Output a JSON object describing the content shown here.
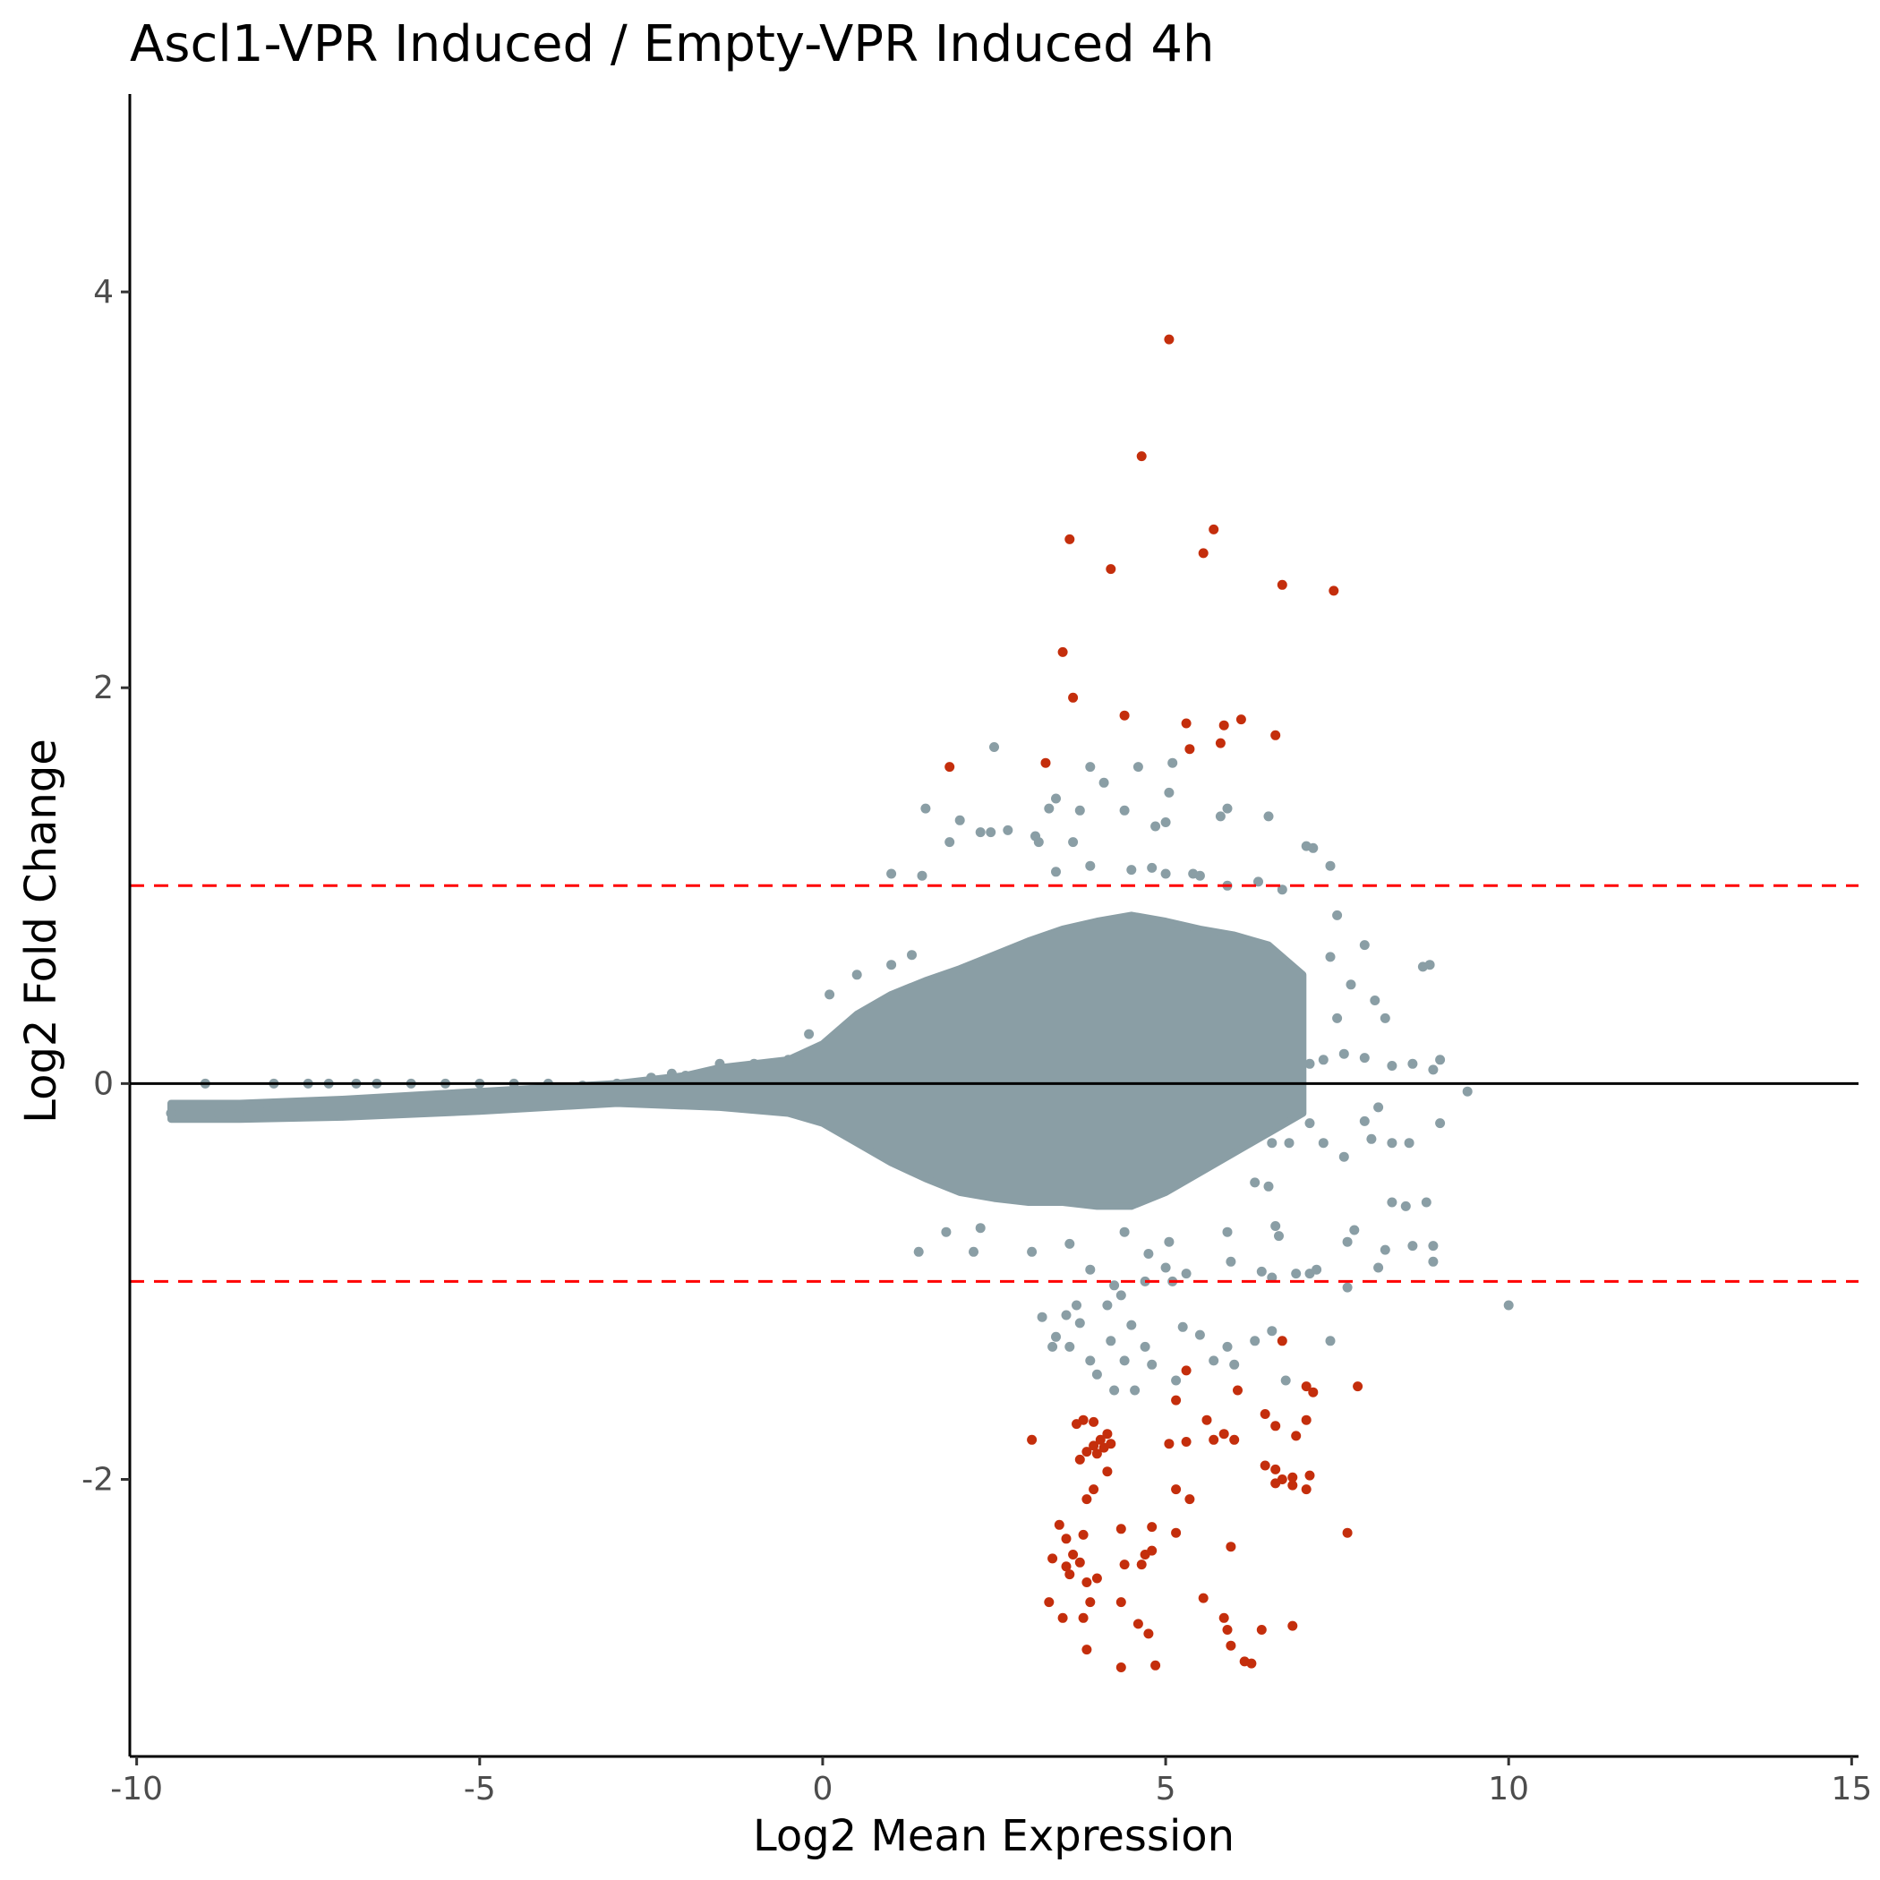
{
  "chart_data": {
    "type": "scatter",
    "title": "Ascl1-VPR Induced / Empty-VPR Induced 4h",
    "xlabel": "Log2 Mean Expression",
    "ylabel": "Log2 Fold Change",
    "xlim": [
      -10.1,
      15.1
    ],
    "ylim": [
      -3.4,
      5.0
    ],
    "xticks": [
      -10,
      -5,
      0,
      5,
      10,
      15
    ],
    "xtick_labels": [
      "-10",
      "-5",
      "0",
      "5",
      "10",
      "15"
    ],
    "yticks": [
      -2,
      0,
      2,
      4
    ],
    "ytick_labels": [
      "-2",
      "0",
      "2",
      "4"
    ],
    "grid": false,
    "reference_lines": [
      {
        "y": 0,
        "style": "solid",
        "color": "#000000"
      },
      {
        "y": 1,
        "style": "dashed",
        "color": "#ff0000"
      },
      {
        "y": -1,
        "style": "dashed",
        "color": "#ff0000"
      }
    ],
    "colors": {
      "not_significant": "#8a9ea5",
      "significant": "#c42e0c"
    },
    "series": [
      {
        "color_key": "significant",
        "points": [
          [
            5.05,
            3.76
          ],
          [
            4.65,
            3.17
          ],
          [
            3.6,
            2.75
          ],
          [
            5.7,
            2.8
          ],
          [
            5.55,
            2.68
          ],
          [
            4.2,
            2.6
          ],
          [
            6.7,
            2.52
          ],
          [
            7.45,
            2.49
          ],
          [
            3.5,
            2.18
          ],
          [
            3.65,
            1.95
          ],
          [
            4.4,
            1.86
          ],
          [
            5.3,
            1.82
          ],
          [
            5.85,
            1.81
          ],
          [
            6.1,
            1.84
          ],
          [
            5.35,
            1.69
          ],
          [
            5.8,
            1.72
          ],
          [
            6.6,
            1.76
          ],
          [
            1.85,
            1.6
          ],
          [
            3.25,
            1.62
          ],
          [
            6.7,
            -1.3
          ],
          [
            5.3,
            -1.45
          ],
          [
            6.05,
            -1.55
          ],
          [
            7.05,
            -1.53
          ],
          [
            7.8,
            -1.53
          ],
          [
            7.15,
            -1.56
          ],
          [
            6.45,
            -1.67
          ],
          [
            5.15,
            -1.6
          ],
          [
            6.6,
            -1.73
          ],
          [
            7.05,
            -1.7
          ],
          [
            5.6,
            -1.7
          ],
          [
            5.85,
            -1.77
          ],
          [
            5.7,
            -1.8
          ],
          [
            6.0,
            -1.8
          ],
          [
            6.9,
            -1.78
          ],
          [
            5.3,
            -1.81
          ],
          [
            5.05,
            -1.82
          ],
          [
            3.05,
            -1.8
          ],
          [
            3.7,
            -1.72
          ],
          [
            3.8,
            -1.7
          ],
          [
            3.95,
            -1.71
          ],
          [
            4.05,
            -1.8
          ],
          [
            4.15,
            -1.77
          ],
          [
            3.95,
            -1.83
          ],
          [
            4.1,
            -1.84
          ],
          [
            4.2,
            -1.82
          ],
          [
            3.85,
            -1.86
          ],
          [
            4.0,
            -1.87
          ],
          [
            3.75,
            -1.9
          ],
          [
            4.15,
            -1.96
          ],
          [
            3.95,
            -2.05
          ],
          [
            3.85,
            -2.1
          ],
          [
            5.15,
            -2.05
          ],
          [
            5.35,
            -2.1
          ],
          [
            6.45,
            -1.93
          ],
          [
            6.6,
            -1.95
          ],
          [
            6.7,
            -2.0
          ],
          [
            6.85,
            -1.99
          ],
          [
            6.6,
            -2.02
          ],
          [
            6.85,
            -2.03
          ],
          [
            7.1,
            -1.98
          ],
          [
            7.05,
            -2.05
          ],
          [
            3.45,
            -2.23
          ],
          [
            3.55,
            -2.3
          ],
          [
            3.8,
            -2.28
          ],
          [
            3.65,
            -2.38
          ],
          [
            3.75,
            -2.42
          ],
          [
            3.55,
            -2.44
          ],
          [
            3.35,
            -2.4
          ],
          [
            4.35,
            -2.25
          ],
          [
            4.8,
            -2.24
          ],
          [
            5.15,
            -2.27
          ],
          [
            4.7,
            -2.38
          ],
          [
            4.8,
            -2.36
          ],
          [
            4.4,
            -2.43
          ],
          [
            4.65,
            -2.43
          ],
          [
            5.95,
            -2.34
          ],
          [
            7.65,
            -2.27
          ],
          [
            3.6,
            -2.48
          ],
          [
            3.85,
            -2.52
          ],
          [
            4.0,
            -2.5
          ],
          [
            3.3,
            -2.62
          ],
          [
            3.9,
            -2.62
          ],
          [
            4.35,
            -2.62
          ],
          [
            5.55,
            -2.6
          ],
          [
            3.5,
            -2.7
          ],
          [
            3.8,
            -2.7
          ],
          [
            4.6,
            -2.73
          ],
          [
            5.85,
            -2.7
          ],
          [
            5.9,
            -2.76
          ],
          [
            6.4,
            -2.76
          ],
          [
            6.85,
            -2.74
          ],
          [
            4.75,
            -2.78
          ],
          [
            5.95,
            -2.84
          ],
          [
            3.85,
            -2.86
          ],
          [
            6.15,
            -2.92
          ],
          [
            6.25,
            -2.93
          ],
          [
            4.35,
            -2.95
          ],
          [
            4.85,
            -2.94
          ]
        ]
      },
      {
        "color_key": "not_significant",
        "points": [
          [
            -9.5,
            -0.15
          ],
          [
            -9.0,
            0.0
          ],
          [
            -8.8,
            -0.15
          ],
          [
            -8.5,
            -0.14
          ],
          [
            -8.1,
            -0.14
          ],
          [
            -8.0,
            0.0
          ],
          [
            -7.5,
            0.0
          ],
          [
            -7.2,
            0.0
          ],
          [
            -6.8,
            0.0
          ],
          [
            -6.5,
            0.0
          ],
          [
            -6.0,
            0.0
          ],
          [
            -5.5,
            0.0
          ],
          [
            -5.0,
            0.0
          ],
          [
            -4.5,
            0.0
          ],
          [
            -4.0,
            0.0
          ],
          [
            -3.5,
            -0.01
          ],
          [
            -3.0,
            0.0
          ],
          [
            -2.5,
            0.03
          ],
          [
            -2.2,
            0.05
          ],
          [
            -2.0,
            0.04
          ],
          [
            -1.5,
            0.1
          ],
          [
            -1.0,
            0.1
          ],
          [
            -0.5,
            0.12
          ],
          [
            -0.2,
            0.25
          ],
          [
            0.1,
            0.45
          ],
          [
            0.5,
            0.55
          ],
          [
            1.0,
            0.6
          ],
          [
            1.3,
            0.65
          ],
          [
            1.4,
            -0.85
          ],
          [
            1.8,
            -0.75
          ],
          [
            2.2,
            -0.85
          ],
          [
            2.3,
            -0.73
          ],
          [
            1.0,
            1.06
          ],
          [
            1.45,
            1.05
          ],
          [
            1.85,
            1.22
          ],
          [
            1.5,
            1.39
          ],
          [
            2.0,
            1.33
          ],
          [
            2.3,
            1.27
          ],
          [
            2.45,
            1.27
          ],
          [
            2.7,
            1.28
          ],
          [
            2.5,
            1.7
          ],
          [
            3.4,
            1.44
          ],
          [
            3.3,
            1.39
          ],
          [
            3.9,
            1.6
          ],
          [
            4.1,
            1.52
          ],
          [
            4.6,
            1.6
          ],
          [
            5.1,
            1.62
          ],
          [
            5.05,
            1.47
          ],
          [
            3.75,
            1.38
          ],
          [
            4.4,
            1.38
          ],
          [
            5.0,
            1.32
          ],
          [
            4.85,
            1.3
          ],
          [
            5.8,
            1.35
          ],
          [
            5.9,
            1.39
          ],
          [
            6.5,
            1.35
          ],
          [
            3.15,
            1.22
          ],
          [
            3.1,
            1.25
          ],
          [
            3.65,
            1.22
          ],
          [
            7.05,
            1.2
          ],
          [
            7.15,
            1.19
          ],
          [
            7.4,
            1.1
          ],
          [
            3.4,
            1.07
          ],
          [
            3.9,
            1.1
          ],
          [
            4.5,
            1.08
          ],
          [
            4.8,
            1.09
          ],
          [
            5.0,
            1.06
          ],
          [
            5.4,
            1.06
          ],
          [
            5.5,
            1.05
          ],
          [
            5.9,
            1.0
          ],
          [
            6.35,
            1.02
          ],
          [
            6.7,
            0.98
          ],
          [
            7.5,
            0.85
          ],
          [
            7.9,
            0.7
          ],
          [
            7.4,
            0.64
          ],
          [
            7.7,
            0.5
          ],
          [
            8.05,
            0.42
          ],
          [
            8.2,
            0.33
          ],
          [
            8.75,
            0.59
          ],
          [
            8.85,
            0.6
          ],
          [
            7.5,
            0.33
          ],
          [
            7.6,
            0.15
          ],
          [
            7.9,
            0.13
          ],
          [
            8.3,
            0.09
          ],
          [
            7.1,
            0.1
          ],
          [
            7.3,
            0.12
          ],
          [
            8.6,
            0.1
          ],
          [
            8.9,
            0.07
          ],
          [
            9.0,
            0.12
          ],
          [
            9.4,
            -0.04
          ],
          [
            8.1,
            -0.12
          ],
          [
            7.9,
            -0.19
          ],
          [
            8.0,
            -0.28
          ],
          [
            8.3,
            -0.3
          ],
          [
            8.55,
            -0.3
          ],
          [
            7.3,
            -0.3
          ],
          [
            7.6,
            -0.37
          ],
          [
            7.1,
            -0.2
          ],
          [
            6.8,
            -0.3
          ],
          [
            6.55,
            -0.3
          ],
          [
            9.0,
            -0.2
          ],
          [
            8.3,
            -0.6
          ],
          [
            8.5,
            -0.62
          ],
          [
            8.8,
            -0.6
          ],
          [
            6.3,
            -0.5
          ],
          [
            6.5,
            -0.52
          ],
          [
            6.6,
            -0.72
          ],
          [
            5.9,
            -0.75
          ],
          [
            6.65,
            -0.77
          ],
          [
            7.65,
            -0.8
          ],
          [
            7.75,
            -0.74
          ],
          [
            8.2,
            -0.84
          ],
          [
            8.6,
            -0.82
          ],
          [
            8.9,
            -0.82
          ],
          [
            8.9,
            -0.9
          ],
          [
            8.1,
            -0.93
          ],
          [
            7.1,
            -0.96
          ],
          [
            7.2,
            -0.94
          ],
          [
            6.9,
            -0.96
          ],
          [
            6.4,
            -0.95
          ],
          [
            6.55,
            -0.98
          ],
          [
            5.95,
            -0.9
          ],
          [
            5.3,
            -0.96
          ],
          [
            5.05,
            -0.8
          ],
          [
            5.0,
            -0.93
          ],
          [
            5.1,
            -1.0
          ],
          [
            4.7,
            -1.0
          ],
          [
            4.25,
            -1.02
          ],
          [
            4.35,
            -1.07
          ],
          [
            3.05,
            -0.85
          ],
          [
            3.6,
            -0.81
          ],
          [
            3.9,
            -0.94
          ],
          [
            4.75,
            -0.86
          ],
          [
            4.4,
            -0.75
          ],
          [
            3.2,
            -1.18
          ],
          [
            3.55,
            -1.17
          ],
          [
            3.7,
            -1.12
          ],
          [
            4.15,
            -1.12
          ],
          [
            4.5,
            -1.22
          ],
          [
            3.35,
            -1.33
          ],
          [
            3.6,
            -1.33
          ],
          [
            3.75,
            -1.21
          ],
          [
            4.2,
            -1.3
          ],
          [
            4.7,
            -1.33
          ],
          [
            3.4,
            -1.28
          ],
          [
            5.25,
            -1.23
          ],
          [
            5.5,
            -1.27
          ],
          [
            5.9,
            -1.33
          ],
          [
            6.3,
            -1.3
          ],
          [
            6.55,
            -1.25
          ],
          [
            7.4,
            -1.3
          ],
          [
            7.65,
            -1.03
          ],
          [
            10.0,
            -1.12
          ],
          [
            3.9,
            -1.4
          ],
          [
            4.4,
            -1.4
          ],
          [
            4.8,
            -1.42
          ],
          [
            5.15,
            -1.5
          ],
          [
            4.0,
            -1.47
          ],
          [
            4.25,
            -1.55
          ],
          [
            4.55,
            -1.55
          ],
          [
            5.7,
            -1.4
          ],
          [
            6.0,
            -1.42
          ],
          [
            6.75,
            -1.5
          ]
        ]
      }
    ],
    "dense_cloud": {
      "color_key": "not_significant",
      "upper_envelope": [
        [
          -9.5,
          -0.1
        ],
        [
          -8.5,
          -0.1
        ],
        [
          -7.0,
          -0.08
        ],
        [
          -5.0,
          -0.04
        ],
        [
          -3.0,
          0.0
        ],
        [
          -2.0,
          0.04
        ],
        [
          -1.5,
          0.08
        ],
        [
          -0.5,
          0.12
        ],
        [
          0.0,
          0.2
        ],
        [
          0.5,
          0.35
        ],
        [
          1.0,
          0.45
        ],
        [
          1.5,
          0.52
        ],
        [
          2.0,
          0.58
        ],
        [
          2.5,
          0.65
        ],
        [
          3.0,
          0.72
        ],
        [
          3.5,
          0.78
        ],
        [
          4.0,
          0.82
        ],
        [
          4.5,
          0.85
        ],
        [
          5.0,
          0.82
        ],
        [
          5.5,
          0.78
        ],
        [
          6.0,
          0.75
        ],
        [
          6.5,
          0.7
        ],
        [
          7.0,
          0.55
        ]
      ],
      "lower_envelope": [
        [
          7.0,
          -0.15
        ],
        [
          6.5,
          -0.25
        ],
        [
          6.0,
          -0.35
        ],
        [
          5.5,
          -0.45
        ],
        [
          5.0,
          -0.55
        ],
        [
          4.5,
          -0.62
        ],
        [
          4.0,
          -0.62
        ],
        [
          3.5,
          -0.6
        ],
        [
          3.0,
          -0.6
        ],
        [
          2.5,
          -0.58
        ],
        [
          2.0,
          -0.55
        ],
        [
          1.5,
          -0.48
        ],
        [
          1.0,
          -0.4
        ],
        [
          0.5,
          -0.3
        ],
        [
          0.0,
          -0.2
        ],
        [
          -0.5,
          -0.15
        ],
        [
          -1.5,
          -0.12
        ],
        [
          -3.0,
          -0.1
        ],
        [
          -5.0,
          -0.14
        ],
        [
          -7.0,
          -0.17
        ],
        [
          -8.5,
          -0.18
        ],
        [
          -9.5,
          -0.18
        ]
      ]
    }
  }
}
